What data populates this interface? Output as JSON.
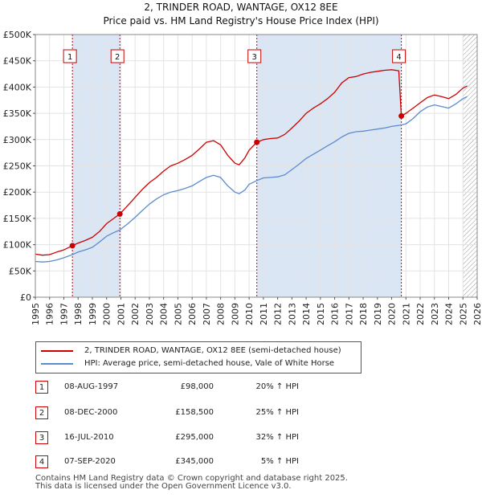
{
  "title_line1": "2, TRINDER ROAD, WANTAGE, OX12 8EE",
  "title_line2": "Price paid vs. HM Land Registry's House Price Index (HPI)",
  "colors": {
    "property": "#cc0000",
    "hpi": "#5b8ccc",
    "shade": "#dbe6f5",
    "marker": "#cc0000"
  },
  "legend": [
    {
      "label": "2, TRINDER ROAD, WANTAGE, OX12 8EE (semi-detached house)",
      "color": "#cc0000"
    },
    {
      "label": "HPI: Average price, semi-detached house, Vale of White Horse",
      "color": "#5b8ccc"
    }
  ],
  "transactions": [
    {
      "num": "1",
      "date": "08-AUG-1997",
      "price": "£98,000",
      "hpi": "20% ↑ HPI"
    },
    {
      "num": "2",
      "date": "08-DEC-2000",
      "price": "£158,500",
      "hpi": "25% ↑ HPI"
    },
    {
      "num": "3",
      "date": "16-JUL-2010",
      "price": "£295,000",
      "hpi": "32% ↑ HPI"
    },
    {
      "num": "4",
      "date": "07-SEP-2020",
      "price": "£345,000",
      "hpi": "5% ↑ HPI"
    }
  ],
  "footer_line1": "Contains HM Land Registry data © Crown copyright and database right 2025.",
  "footer_line2": "This data is licensed under the Open Government Licence v3.0.",
  "chart_data": {
    "type": "line",
    "xlim": [
      1995,
      2026
    ],
    "ylim": [
      0,
      500000
    ],
    "yticks": [
      0,
      50000,
      100000,
      150000,
      200000,
      250000,
      300000,
      350000,
      400000,
      450000,
      500000
    ],
    "ytick_labels": [
      "£0",
      "£50K",
      "£100K",
      "£150K",
      "£200K",
      "£250K",
      "£300K",
      "£350K",
      "£400K",
      "£450K",
      "£500K"
    ],
    "xticks": [
      1995,
      1996,
      1997,
      1998,
      1999,
      2000,
      2001,
      2002,
      2003,
      2004,
      2005,
      2006,
      2007,
      2008,
      2009,
      2010,
      2011,
      2012,
      2013,
      2014,
      2015,
      2016,
      2017,
      2018,
      2019,
      2020,
      2021,
      2022,
      2023,
      2024,
      2025,
      2026
    ],
    "grid": true,
    "shaded_ranges": [
      [
        1997.6,
        2000.93
      ],
      [
        2010.54,
        2020.68
      ]
    ],
    "hatched_from": 2025.0,
    "sales": [
      {
        "label": "1",
        "x": 1997.6,
        "y": 98000
      },
      {
        "label": "2",
        "x": 2000.93,
        "y": 158500
      },
      {
        "label": "3",
        "x": 2010.54,
        "y": 295000
      },
      {
        "label": "4",
        "x": 2020.68,
        "y": 345000
      }
    ],
    "series": [
      {
        "name": "2, TRINDER ROAD, WANTAGE, OX12 8EE (semi-detached house)",
        "color": "#cc0000",
        "x": [
          1995,
          1995.5,
          1996,
          1996.5,
          1997,
          1997.6,
          1998,
          1998.5,
          1999,
          1999.5,
          2000,
          2000.5,
          2000.93,
          2001.5,
          2002,
          2002.5,
          2003,
          2003.5,
          2004,
          2004.5,
          2005,
          2005.5,
          2006,
          2006.5,
          2007,
          2007.5,
          2008,
          2008.5,
          2009,
          2009.3,
          2009.7,
          2010,
          2010.54,
          2011,
          2011.5,
          2012,
          2012.5,
          2013,
          2013.5,
          2014,
          2014.5,
          2015,
          2015.5,
          2016,
          2016.5,
          2017,
          2017.5,
          2018,
          2018.5,
          2019,
          2019.5,
          2020,
          2020.5,
          2020.68,
          2021,
          2021.5,
          2022,
          2022.5,
          2023,
          2023.5,
          2024,
          2024.5,
          2025,
          2025.3
        ],
        "y": [
          82000,
          80000,
          81000,
          86000,
          90000,
          98000,
          103000,
          108000,
          114000,
          125000,
          140000,
          150000,
          158500,
          175000,
          190000,
          205000,
          218000,
          228000,
          240000,
          250000,
          255000,
          262000,
          270000,
          282000,
          295000,
          298000,
          290000,
          270000,
          255000,
          252000,
          265000,
          280000,
          295000,
          300000,
          302000,
          303000,
          310000,
          322000,
          335000,
          350000,
          360000,
          368000,
          378000,
          390000,
          408000,
          418000,
          420000,
          425000,
          428000,
          430000,
          432000,
          433000,
          431000,
          345000,
          350000,
          360000,
          370000,
          380000,
          385000,
          382000,
          378000,
          386000,
          398000,
          402000
        ]
      },
      {
        "name": "HPI: Average price, semi-detached house, Vale of White Horse",
        "color": "#5b8ccc",
        "x": [
          1995,
          1995.5,
          1996,
          1996.5,
          1997,
          1997.6,
          1998,
          1998.5,
          1999,
          1999.5,
          2000,
          2000.5,
          2000.93,
          2001.5,
          2002,
          2002.5,
          2003,
          2003.5,
          2004,
          2004.5,
          2005,
          2005.5,
          2006,
          2006.5,
          2007,
          2007.5,
          2008,
          2008.5,
          2009,
          2009.3,
          2009.7,
          2010,
          2010.54,
          2011,
          2011.5,
          2012,
          2012.5,
          2013,
          2013.5,
          2014,
          2014.5,
          2015,
          2015.5,
          2016,
          2016.5,
          2017,
          2017.5,
          2018,
          2018.5,
          2019,
          2019.5,
          2020,
          2020.5,
          2020.68,
          2021,
          2021.5,
          2022,
          2022.5,
          2023,
          2023.5,
          2024,
          2024.5,
          2025,
          2025.3
        ],
        "y": [
          68000,
          67000,
          68000,
          71000,
          75000,
          81000,
          86000,
          90000,
          95000,
          105000,
          116000,
          123000,
          128000,
          140000,
          152000,
          165000,
          177000,
          187000,
          195000,
          200000,
          203000,
          207000,
          212000,
          220000,
          228000,
          232000,
          228000,
          212000,
          200000,
          197000,
          204000,
          215000,
          222000,
          227000,
          228000,
          229000,
          233000,
          243000,
          253000,
          264000,
          272000,
          280000,
          288000,
          296000,
          305000,
          312000,
          315000,
          316000,
          318000,
          320000,
          322000,
          325000,
          327000,
          328000,
          330000,
          340000,
          353000,
          362000,
          366000,
          363000,
          360000,
          368000,
          378000,
          382000
        ]
      }
    ]
  }
}
